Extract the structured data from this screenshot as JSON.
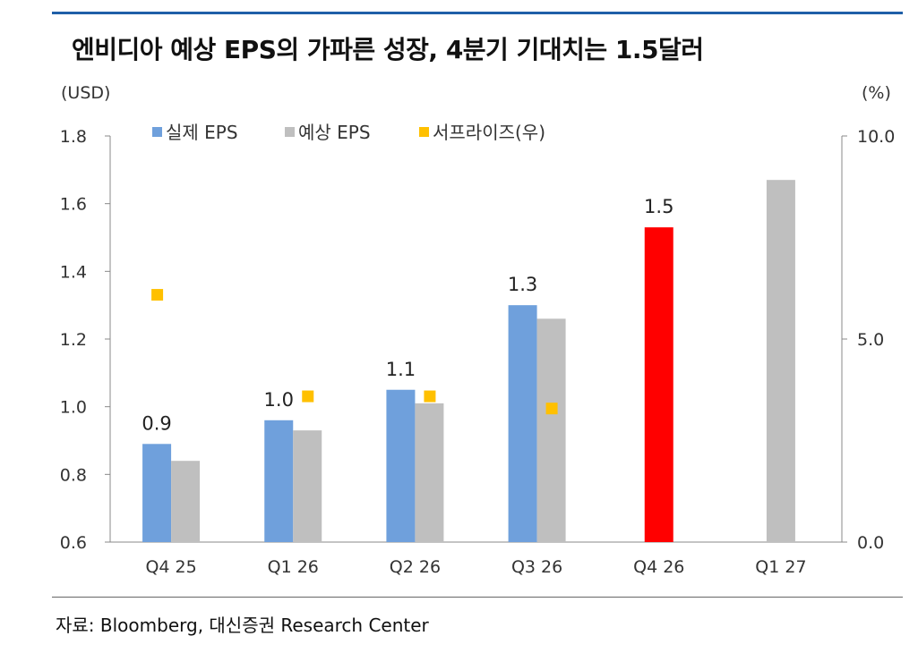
{
  "title": "엔비디아 예상 EPS의 가파른 성장, 4분기 기대치는 1.5달러",
  "source": "자료: Bloomberg, 대신증권 Research Center",
  "colors": {
    "rule": "#1f5fa8",
    "actual": "#6fa0dc",
    "estimate": "#bfbfbf",
    "highlight": "#ff0000",
    "surprise": "#ffc000"
  },
  "chart_data": {
    "type": "bar",
    "title": "엔비디아 예상 EPS의 가파른 성장, 4분기 기대치는 1.5달러",
    "ylabel": "(USD)",
    "y2label": "(%)",
    "ylim": [
      0.6,
      1.8
    ],
    "yticks": [
      "0.6",
      "0.8",
      "1.0",
      "1.2",
      "1.4",
      "1.6",
      "1.8"
    ],
    "y2lim": [
      0.0,
      10.0
    ],
    "y2ticks": [
      "0.0",
      "5.0",
      "10.0"
    ],
    "categories": [
      "Q4 25",
      "Q1 26",
      "Q2 26",
      "Q3 26",
      "Q4 26",
      "Q1 27"
    ],
    "legend": [
      "실제 EPS",
      "예상 EPS",
      "서프라이즈(우)"
    ],
    "series": [
      {
        "name": "실제 EPS",
        "values": [
          0.89,
          0.96,
          1.05,
          1.3,
          null,
          null
        ]
      },
      {
        "name": "예상 EPS",
        "values": [
          0.84,
          0.93,
          1.01,
          1.26,
          1.53,
          1.67
        ]
      },
      {
        "name": "서프라이즈(우)",
        "axis": "right",
        "values": [
          6.1,
          3.6,
          3.6,
          3.3,
          null,
          null
        ]
      }
    ],
    "data_labels": [
      "0.9",
      "1.0",
      "1.1",
      "1.3",
      "1.5",
      ""
    ],
    "highlight_index": 4,
    "grid": false
  }
}
